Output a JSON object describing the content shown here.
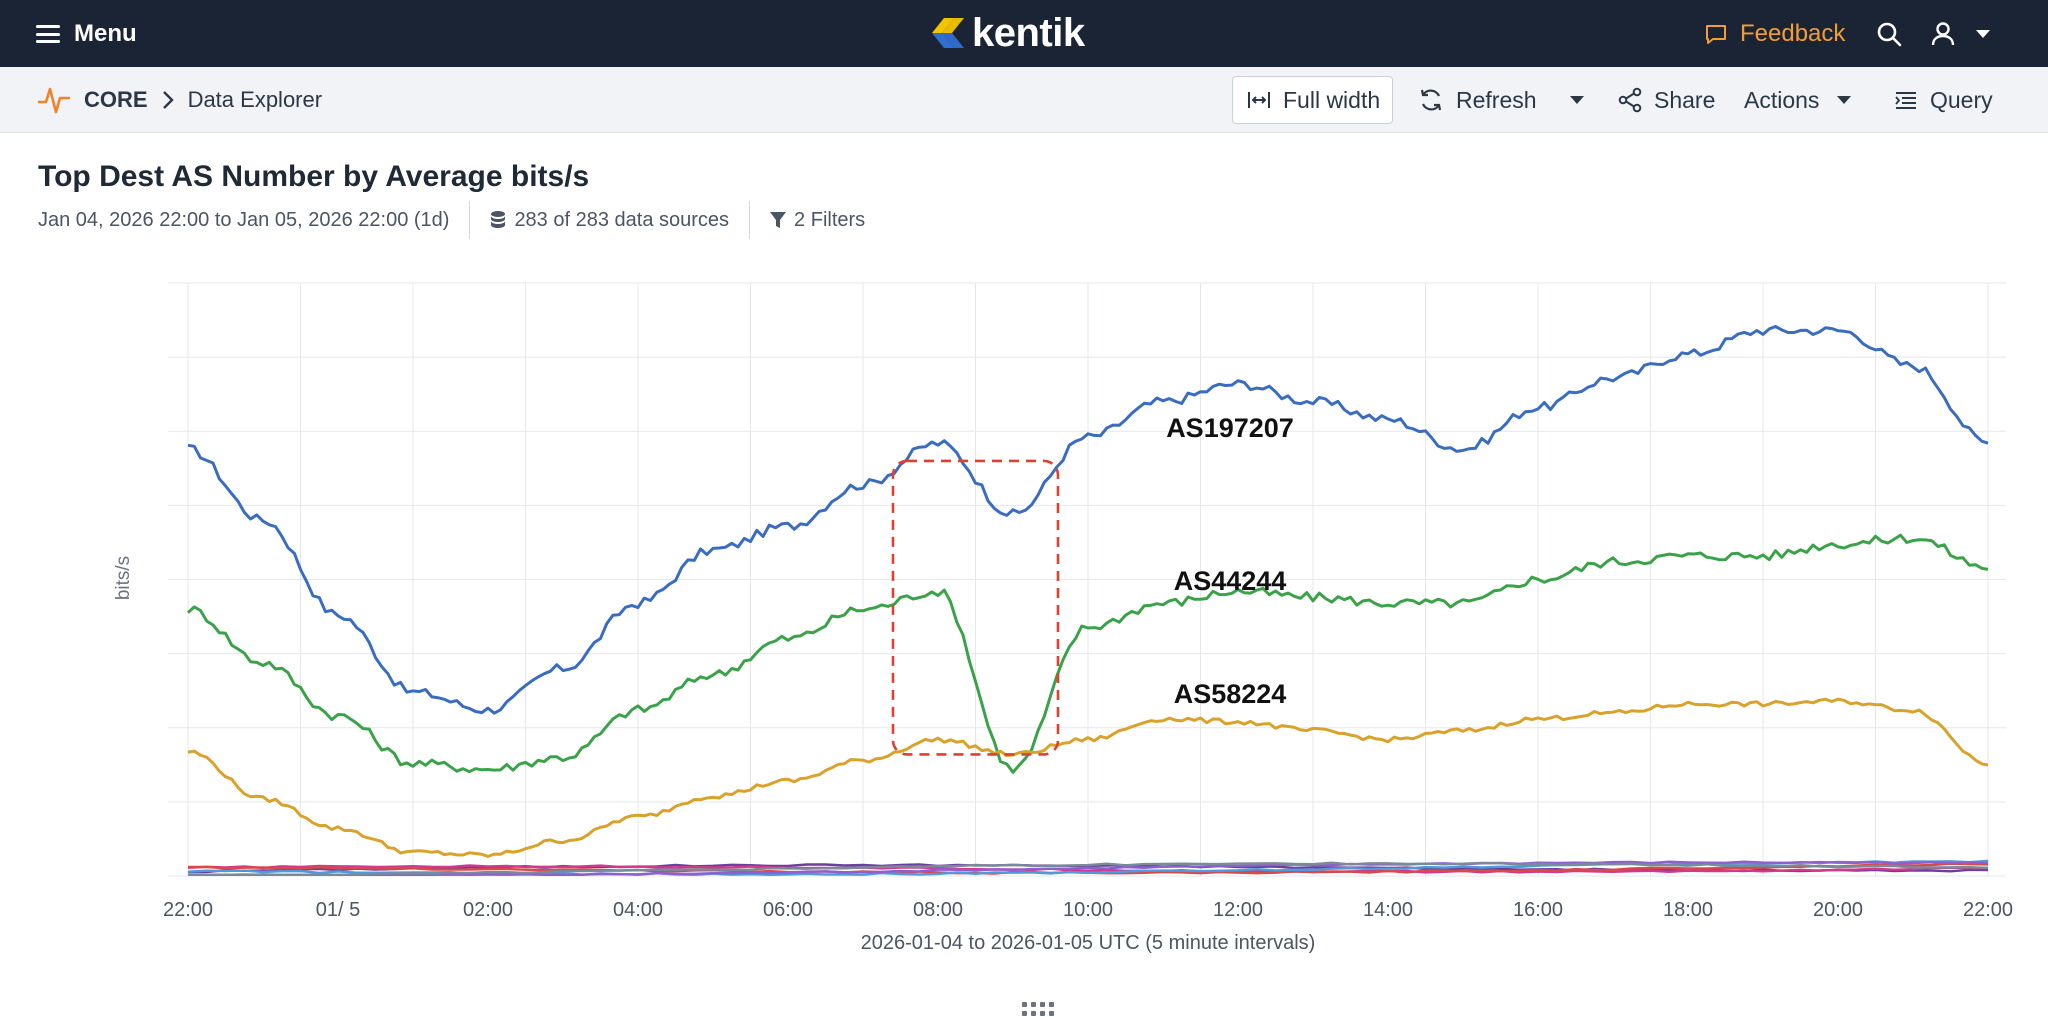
{
  "topbar": {
    "menu_label": "Menu",
    "brand": "kentik",
    "feedback_label": "Feedback",
    "colors": {
      "background": "#1b2434",
      "feedback": "#f29d38"
    }
  },
  "breadcrumb": {
    "root": "CORE",
    "page": "Data Explorer"
  },
  "toolbar": {
    "full_width_label": "Full width",
    "refresh_label": "Refresh",
    "share_label": "Share",
    "actions_label": "Actions",
    "query_label": "Query"
  },
  "view": {
    "title": "Top Dest AS Number by Average bits/s",
    "time_range": "Jan 04, 2026 22:00 to Jan 05, 2026 22:00 (1d)",
    "data_sources": "283 of 283 data sources",
    "filters": "2 Filters"
  },
  "chart_data": {
    "type": "line",
    "ylabel": "bits/s",
    "xlabel": "2026-01-04 to 2026-01-05 UTC (5 minute intervals)",
    "x_ticks": [
      "22:00",
      "01/ 5",
      "02:00",
      "04:00",
      "06:00",
      "08:00",
      "10:00",
      "12:00",
      "14:00",
      "16:00",
      "18:00",
      "20:00",
      "22:00"
    ],
    "x_hours": [
      0,
      1,
      2,
      3,
      4,
      5,
      6,
      7,
      8,
      9,
      10,
      11,
      12,
      13,
      14,
      15,
      16,
      17,
      18,
      19,
      20,
      21,
      22,
      23,
      24
    ],
    "y_tick_labels_shown": false,
    "grid": true,
    "series": [
      {
        "name": "AS197207",
        "color": "#3a6cc0",
        "values": [
          7.2,
          6.0,
          4.4,
          3.1,
          2.8,
          3.5,
          4.6,
          5.5,
          5.9,
          6.6,
          7.3,
          6.1,
          7.4,
          8.0,
          8.3,
          8.0,
          7.7,
          7.2,
          7.9,
          8.4,
          8.8,
          9.2,
          9.2,
          8.6,
          7.3
        ]
      },
      {
        "name": "AS44244",
        "color": "#3ba24a",
        "values": [
          4.5,
          3.6,
          2.7,
          1.9,
          1.8,
          2.0,
          2.8,
          3.4,
          4.0,
          4.5,
          4.8,
          1.8,
          4.2,
          4.6,
          4.8,
          4.7,
          4.6,
          4.6,
          5.0,
          5.3,
          5.4,
          5.4,
          5.6,
          5.7,
          5.2
        ]
      },
      {
        "name": "AS58224",
        "color": "#d8a22b",
        "values": [
          2.1,
          1.3,
          0.8,
          0.4,
          0.35,
          0.6,
          1.0,
          1.35,
          1.6,
          1.95,
          2.3,
          2.05,
          2.3,
          2.65,
          2.6,
          2.45,
          2.3,
          2.45,
          2.65,
          2.75,
          2.9,
          2.9,
          2.95,
          2.8,
          1.9
        ]
      }
    ],
    "minor_series_colors": [
      "#6a3fa0",
      "#d2388c",
      "#d84a4a",
      "#4f9bd9",
      "#8e5fd1",
      "#7a8a99"
    ],
    "minor_series_level": 0.15,
    "highlight_box": {
      "x_start_hour": 9.4,
      "x_end_hour": 11.6,
      "color": "#e0402f",
      "style": "dashed"
    },
    "annotations": [
      "AS197207",
      "AS44244",
      "AS58224"
    ]
  }
}
